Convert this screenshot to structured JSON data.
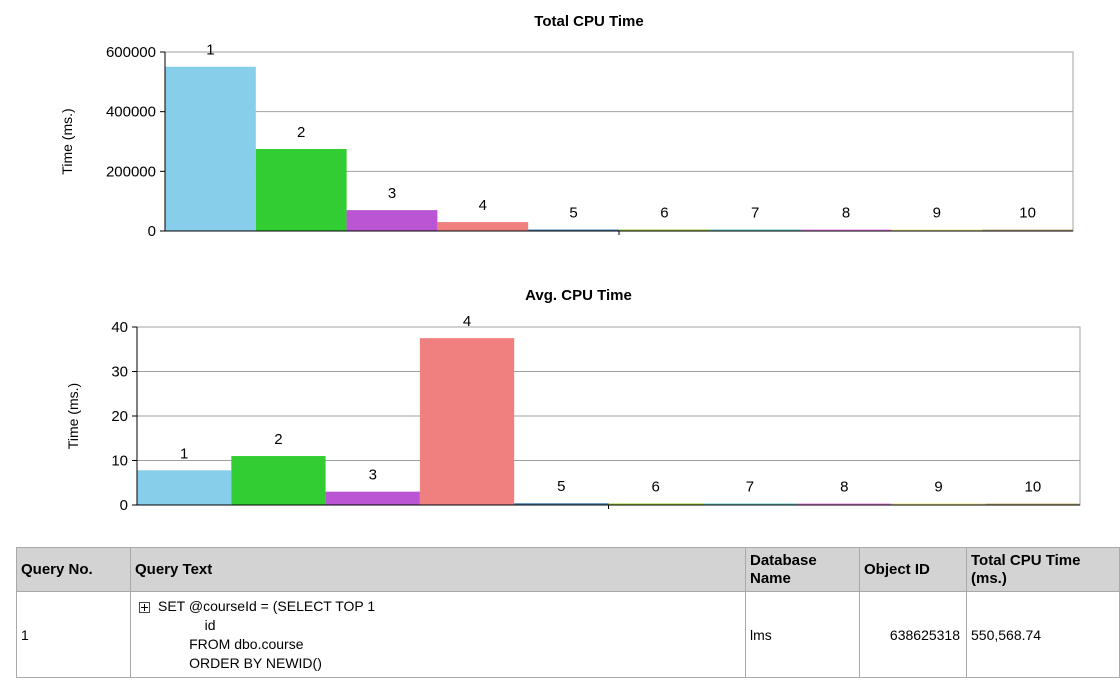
{
  "chart_data": [
    {
      "type": "bar",
      "title": "Total CPU Time",
      "ylabel": "Time (ms.)",
      "xlabel": "",
      "ylim": [
        0,
        600000
      ],
      "yticks": [
        0,
        200000,
        400000,
        600000
      ],
      "grid": true,
      "categories": [
        "1",
        "2",
        "3",
        "4",
        "5",
        "6",
        "7",
        "8",
        "9",
        "10"
      ],
      "values": [
        550568.74,
        275000,
        70000,
        30000,
        3000,
        1500,
        1200,
        1000,
        800,
        700
      ],
      "colors": [
        "#87ceeb",
        "#32cd32",
        "#ba55d3",
        "#f08080",
        "#4682b4",
        "#9acd32",
        "#5fc8c8",
        "#ee82ee",
        "#f0e68c",
        "#c8b482"
      ]
    },
    {
      "type": "bar",
      "title": "Avg. CPU Time",
      "ylabel": "Time (ms.)",
      "xlabel": "",
      "ylim": [
        0,
        40
      ],
      "yticks": [
        0,
        10,
        20,
        30,
        40
      ],
      "grid": true,
      "categories": [
        "1",
        "2",
        "3",
        "4",
        "5",
        "6",
        "7",
        "8",
        "9",
        "10"
      ],
      "values": [
        7.8,
        11,
        3,
        37.5,
        0.4,
        0.25,
        0.2,
        0.2,
        0.15,
        0.2
      ],
      "colors": [
        "#87ceeb",
        "#32cd32",
        "#ba55d3",
        "#f08080",
        "#4682b4",
        "#9acd32",
        "#5fc8c8",
        "#ee82ee",
        "#f0e68c",
        "#c8b482"
      ]
    }
  ],
  "table": {
    "headers": [
      "Query No.",
      "Query Text",
      "Database Name",
      "Object ID",
      "Total CPU Time (ms.)"
    ],
    "rows": [
      {
        "query_no": "1",
        "query_text": "SET @courseId = (SELECT TOP 1\n            id\n        FROM dbo.course\n        ORDER BY NEWID()",
        "database_name": "lms",
        "object_id": "638625318",
        "total_cpu_time": "550,568.74"
      }
    ]
  }
}
